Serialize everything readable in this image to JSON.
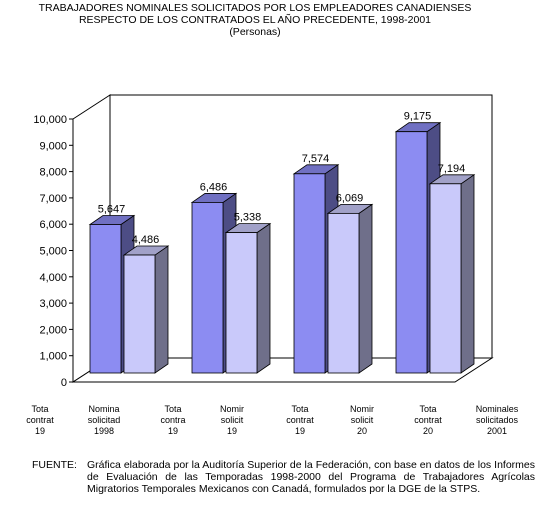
{
  "chart_data": {
    "type": "bar",
    "title": [
      "TRABAJADORES NOMINALES SOLICITADOS POR LOS EMPLEADORES CANADIENSES",
      "RESPECTO DE LOS CONTRATADOS EL AÑO PRECEDENTE, 1998-2001"
    ],
    "subtitle": "(Personas)",
    "xlabel": "",
    "ylabel": "",
    "ylim": [
      0,
      10000
    ],
    "yticks": [
      0,
      1000,
      2000,
      3000,
      4000,
      5000,
      6000,
      7000,
      8000,
      9000,
      10000
    ],
    "ytick_labels": [
      "0",
      "1,000",
      "2,000",
      "3,000",
      "4,000",
      "5,000",
      "6,000",
      "7,000",
      "8,000",
      "9,000",
      "10,000"
    ],
    "grid": false,
    "three_d": true,
    "category_labels": [
      [
        "Tota",
        "contrat",
        "19"
      ],
      [
        "Nomina",
        "solicitad",
        "1998"
      ],
      [
        "Tota",
        "contra",
        "19"
      ],
      [
        "Nomir",
        "solicit",
        "19"
      ],
      [
        "Tota",
        "contrat",
        "19"
      ],
      [
        "Nomir",
        "solicit",
        "20"
      ],
      [
        "Tota",
        "contrat",
        "20"
      ],
      [
        "Nominales",
        "solicitados",
        "2001"
      ]
    ],
    "bars": [
      {
        "group": 0,
        "value": 5647,
        "label": "5,647",
        "color": "#8c8cf2"
      },
      {
        "group": 0,
        "value": 4486,
        "label": "4,486",
        "color": "#c9c9fa"
      },
      {
        "group": 1,
        "value": 6486,
        "label": "6,486",
        "color": "#8c8cf2"
      },
      {
        "group": 1,
        "value": 5338,
        "label": "5,338",
        "color": "#c9c9fa"
      },
      {
        "group": 2,
        "value": 7574,
        "label": "7,574",
        "color": "#8c8cf2"
      },
      {
        "group": 2,
        "value": 6069,
        "label": "6,069",
        "color": "#c9c9fa"
      },
      {
        "group": 3,
        "value": 9175,
        "label": "9,175",
        "color": "#8c8cf2"
      },
      {
        "group": 3,
        "value": 7194,
        "label": "7,194",
        "color": "#c9c9fa"
      }
    ]
  },
  "source": {
    "label": "FUENTE:",
    "text": "Gráfica elaborada por la Auditoría Superior de la Federación, con base en datos de los Informes de Evaluación de las Temporadas 1998-2000 del Programa de Trabajadores Agrícolas Migratorios Temporales Mexicanos con Canadá, formulados por la DGE de la STPS."
  }
}
